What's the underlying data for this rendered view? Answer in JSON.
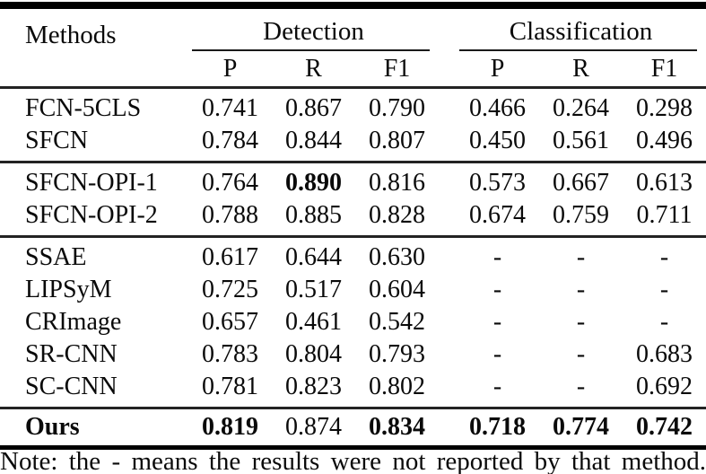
{
  "table": {
    "header": {
      "methods": "Methods",
      "groups": [
        {
          "label": "Detection",
          "sub": [
            "P",
            "R",
            "F1"
          ]
        },
        {
          "label": "Classification",
          "sub": [
            "P",
            "R",
            "F1"
          ]
        }
      ]
    },
    "sections": [
      {
        "rows": [
          {
            "method": "FCN-5CLS",
            "det_p": "0.741",
            "det_r": "0.867",
            "det_f1": "0.790",
            "cls_p": "0.466",
            "cls_r": "0.264",
            "cls_f1": "0.298"
          },
          {
            "method": "SFCN",
            "det_p": "0.784",
            "det_r": "0.844",
            "det_f1": "0.807",
            "cls_p": "0.450",
            "cls_r": "0.561",
            "cls_f1": "0.496"
          }
        ]
      },
      {
        "rows": [
          {
            "method": "SFCN-OPI-1",
            "det_p": "0.764",
            "det_r": "0.890",
            "det_f1": "0.816",
            "cls_p": "0.573",
            "cls_r": "0.667",
            "cls_f1": "0.613"
          },
          {
            "method": "SFCN-OPI-2",
            "det_p": "0.788",
            "det_r": "0.885",
            "det_f1": "0.828",
            "cls_p": "0.674",
            "cls_r": "0.759",
            "cls_f1": "0.711"
          }
        ]
      },
      {
        "rows": [
          {
            "method": "SSAE",
            "det_p": "0.617",
            "det_r": "0.644",
            "det_f1": "0.630",
            "cls_p": "-",
            "cls_r": "-",
            "cls_f1": "-"
          },
          {
            "method": "LIPSyM",
            "det_p": "0.725",
            "det_r": "0.517",
            "det_f1": "0.604",
            "cls_p": "-",
            "cls_r": "-",
            "cls_f1": "-"
          },
          {
            "method": "CRImage",
            "det_p": "0.657",
            "det_r": "0.461",
            "det_f1": "0.542",
            "cls_p": "-",
            "cls_r": "-",
            "cls_f1": "-"
          },
          {
            "method": "SR-CNN",
            "det_p": "0.783",
            "det_r": "0.804",
            "det_f1": "0.793",
            "cls_p": "-",
            "cls_r": "-",
            "cls_f1": "0.683"
          },
          {
            "method": "SC-CNN",
            "det_p": "0.781",
            "det_r": "0.823",
            "det_f1": "0.802",
            "cls_p": "-",
            "cls_r": "-",
            "cls_f1": "0.692"
          }
        ]
      },
      {
        "rows": [
          {
            "method": "Ours",
            "det_p": "0.819",
            "det_r": "0.874",
            "det_f1": "0.834",
            "cls_p": "0.718",
            "cls_r": "0.774",
            "cls_f1": "0.742"
          }
        ]
      }
    ],
    "note": "Note: the - means the results were not reported by that method."
  }
}
